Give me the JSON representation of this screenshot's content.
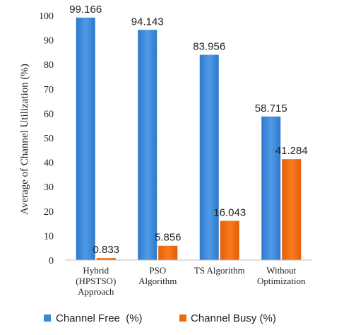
{
  "chart_data": {
    "type": "bar",
    "ylabel": "Average of Channel Utilization (%)",
    "ylim": [
      0,
      100
    ],
    "yticks": [
      0,
      10,
      20,
      30,
      40,
      50,
      60,
      70,
      80,
      90,
      100
    ],
    "categories": [
      [
        "Hybrid",
        "(HPSTSO)",
        "Approach"
      ],
      [
        "PSO",
        "Algorithm"
      ],
      [
        "TS Algorithm"
      ],
      [
        "Without",
        "Optimization"
      ]
    ],
    "series": [
      {
        "name": "Channel Free  (%)",
        "color": "#3f87d6",
        "values": [
          99.166,
          94.143,
          83.956,
          58.715
        ],
        "labels": [
          "99.166",
          "94.143",
          "83.956",
          "58.715"
        ]
      },
      {
        "name": "Channel Busy (%)",
        "color": "#f06a0f",
        "values": [
          0.833,
          5.856,
          16.043,
          41.284
        ],
        "labels": [
          "0.833",
          "5.856",
          "16.043",
          "41.284"
        ]
      }
    ],
    "legend_position": "bottom",
    "grid": false
  }
}
